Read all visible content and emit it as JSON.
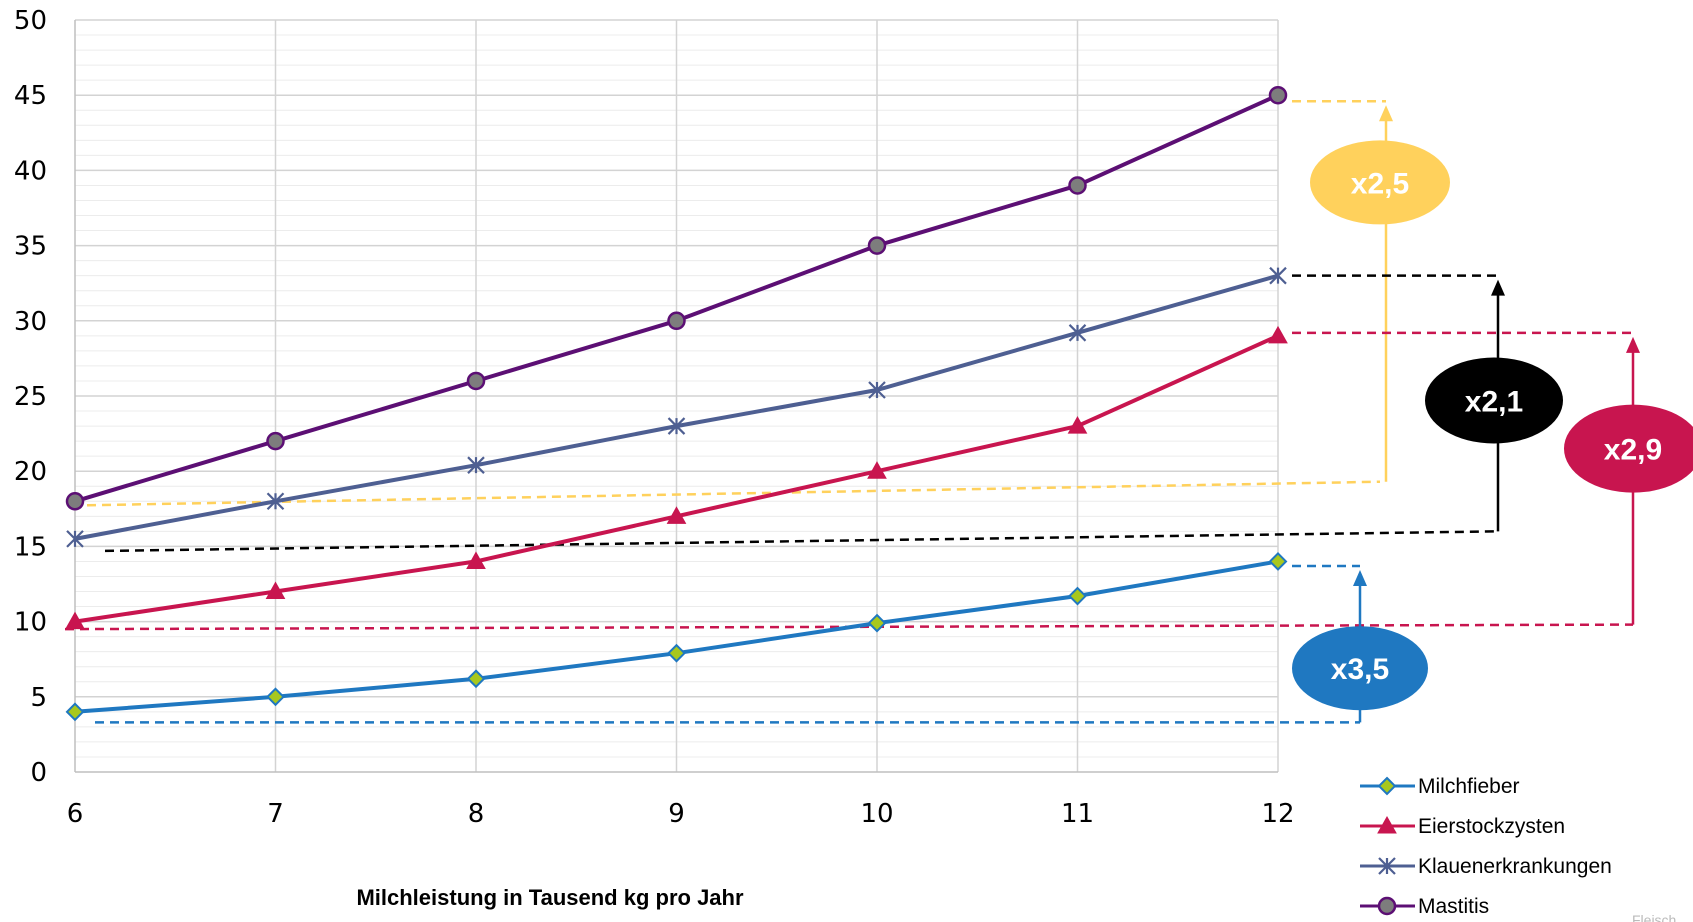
{
  "chart_data": {
    "type": "line",
    "title": "",
    "xlabel": "Milchleistung in Tausend kg pro Jahr",
    "ylabel": "",
    "x": [
      6,
      7,
      8,
      9,
      10,
      11,
      12
    ],
    "x_tick_labels": [
      "6",
      "7",
      "8",
      "9",
      "10",
      "11",
      "12"
    ],
    "y_tick_labels": [
      "0",
      "5",
      "10",
      "15",
      "20",
      "25",
      "30",
      "35",
      "40",
      "45",
      "50"
    ],
    "xlim": [
      6,
      12
    ],
    "ylim": [
      0,
      50
    ],
    "grid": true,
    "legend_position": "bottom-right",
    "series": [
      {
        "name": "Milchfieber",
        "values": [
          4,
          5,
          6.2,
          7.9,
          9.9,
          11.7,
          14
        ],
        "color": "#1f78c1",
        "marker": "diamond",
        "marker_fill": "#a8c81e"
      },
      {
        "name": "Eierstockzysten",
        "values": [
          10,
          12,
          14,
          17,
          20,
          23,
          29
        ],
        "color": "#c8154f",
        "marker": "triangle",
        "marker_fill": "#c8154f"
      },
      {
        "name": "Klauenerkrankungen",
        "values": [
          15.5,
          18,
          20.4,
          23,
          25.4,
          29.2,
          33
        ],
        "color": "#4e5f92",
        "marker": "star",
        "marker_fill": "#4e5f92"
      },
      {
        "name": "Mastitis",
        "values": [
          18,
          22,
          26,
          30,
          35,
          39,
          45
        ],
        "color": "#5c0f74",
        "marker": "circle",
        "marker_fill": "#7d7d7d"
      }
    ],
    "annotations": [
      {
        "series": "Mastitis",
        "label": "x2,5",
        "from": 18,
        "to": 45,
        "color": "#ffd15c"
      },
      {
        "series": "Klauenerkrankungen",
        "label": "x2,1",
        "from": 15.5,
        "to": 33,
        "color": "#000000"
      },
      {
        "series": "Eierstockzysten",
        "label": "x2,9",
        "from": 10,
        "to": 29,
        "color": "#c8154f"
      },
      {
        "series": "Milchfieber",
        "label": "x3,5",
        "from": 4,
        "to": 14,
        "color": "#1f78c1"
      }
    ]
  },
  "credit": "Fleisch"
}
